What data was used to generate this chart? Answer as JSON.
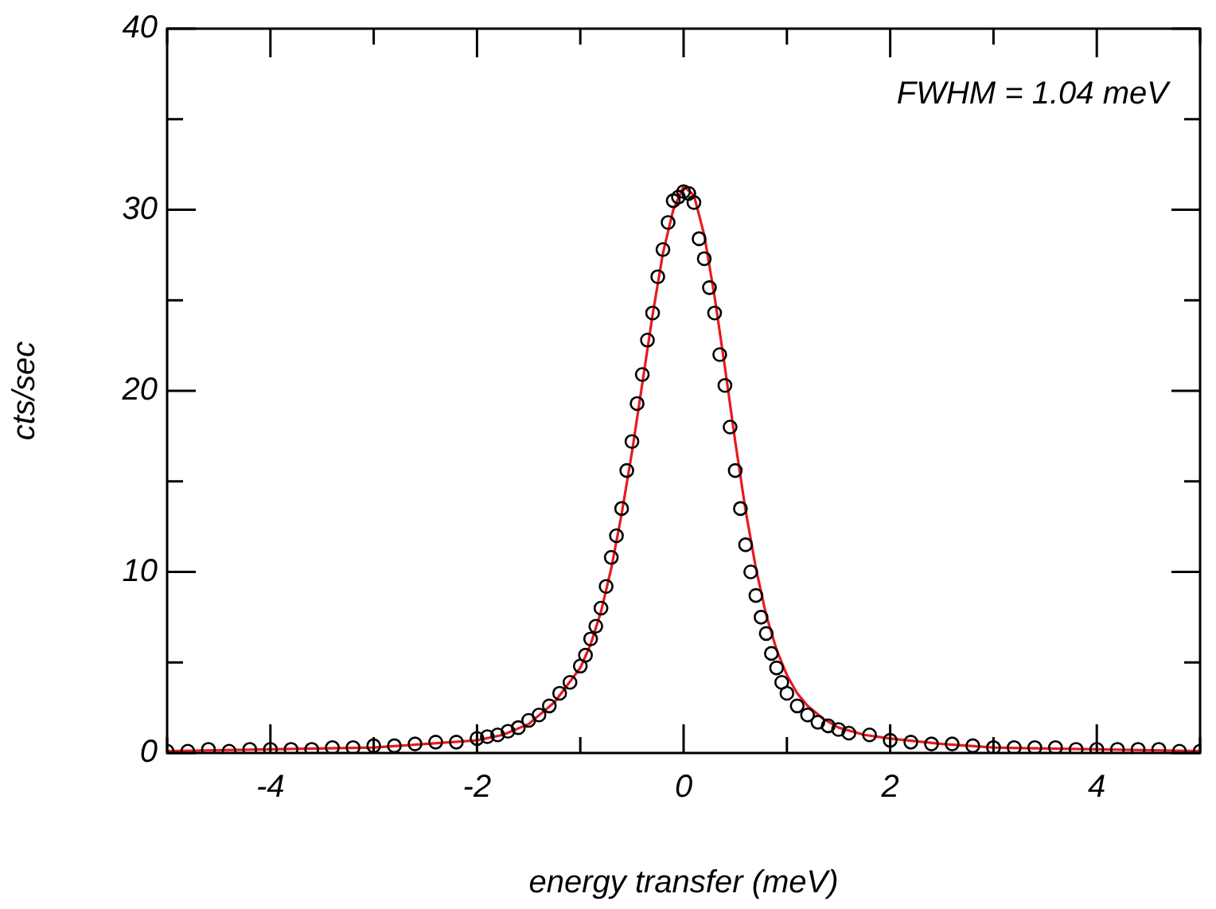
{
  "chart_data": {
    "type": "scatter",
    "xlabel": "energy transfer (meV)",
    "ylabel": "cts/sec",
    "annotations": [
      "FWHM = 1.04 meV"
    ],
    "xlim": [
      -5,
      5
    ],
    "ylim": [
      0,
      40
    ],
    "xticks": [
      {
        "value": -5,
        "label": null
      },
      -4,
      {
        "value": -3,
        "label": null
      },
      -2,
      {
        "value": -1,
        "label": null
      },
      0,
      {
        "value": 1,
        "label": null
      },
      2,
      {
        "value": 3,
        "label": null
      },
      4,
      {
        "value": 5,
        "label": null
      }
    ],
    "yticks": [
      0,
      {
        "value": 5,
        "label": null
      },
      10,
      {
        "value": 15,
        "label": null
      },
      20,
      {
        "value": 25,
        "label": null
      },
      30,
      {
        "value": 35,
        "label": null
      },
      40
    ],
    "grid": false,
    "legend": false,
    "series": [
      {
        "type": "scatter",
        "marker": "circle",
        "color": "#000000",
        "x": [
          -5,
          -4.8,
          -4.6,
          -4.4,
          -4.2,
          -4,
          -3.8,
          -3.6,
          -3.4,
          -3.2,
          -3,
          -2.8,
          -2.6,
          -2.4,
          -2.2,
          -2,
          -1.9,
          -1.8,
          -1.7,
          -1.6,
          -1.5,
          -1.4,
          -1.3,
          -1.2,
          -1.1,
          -1,
          -0.95,
          -0.9,
          -0.85,
          -0.8,
          -0.75,
          -0.7,
          -0.65,
          -0.6,
          -0.55,
          -0.5,
          -0.45,
          -0.4,
          -0.35,
          -0.3,
          -0.25,
          -0.2,
          -0.15,
          -0.1,
          -0.05,
          0,
          0.05,
          0.1,
          0.15,
          0.2,
          0.25,
          0.3,
          0.35,
          0.4,
          0.45,
          0.5,
          0.55,
          0.6,
          0.65,
          0.7,
          0.75,
          0.8,
          0.85,
          0.9,
          0.95,
          1,
          1.1,
          1.2,
          1.3,
          1.4,
          1.5,
          1.6,
          1.8,
          2,
          2.2,
          2.4,
          2.6,
          2.8,
          3,
          3.2,
          3.4,
          3.6,
          3.8,
          4,
          4.2,
          4.4,
          4.6,
          4.8,
          5
        ],
        "values": [
          0.1,
          0.1,
          0.2,
          0.1,
          0.2,
          0.2,
          0.2,
          0.2,
          0.3,
          0.3,
          0.4,
          0.4,
          0.5,
          0.6,
          0.6,
          0.8,
          0.9,
          1,
          1.2,
          1.4,
          1.8,
          2.1,
          2.6,
          3.3,
          3.9,
          4.8,
          5.4,
          6.3,
          7,
          8,
          9.2,
          10.8,
          12,
          13.5,
          15.6,
          17.2,
          19.3,
          20.9,
          22.8,
          24.3,
          26.3,
          27.8,
          29.3,
          30.5,
          30.7,
          31,
          30.9,
          30.4,
          28.4,
          27.3,
          25.7,
          24.3,
          22,
          20.3,
          18,
          15.6,
          13.5,
          11.5,
          10,
          8.7,
          7.5,
          6.6,
          5.5,
          4.7,
          3.9,
          3.3,
          2.6,
          2.1,
          1.7,
          1.5,
          1.3,
          1.1,
          1,
          0.7,
          0.6,
          0.5,
          0.5,
          0.4,
          0.3,
          0.3,
          0.3,
          0.3,
          0.2,
          0.2,
          0.2,
          0.2,
          0.2,
          0.1,
          0.1
        ]
      },
      {
        "type": "line",
        "marker": "none",
        "line_style": "solid",
        "color": "#e8191e",
        "x": [
          -5,
          -4,
          -3,
          -2.5,
          -2,
          -1.75,
          -1.5,
          -1.25,
          -1,
          -0.9,
          -0.8,
          -0.7,
          -0.6,
          -0.5,
          -0.4,
          -0.3,
          -0.2,
          -0.1,
          0,
          0.1,
          0.2,
          0.3,
          0.4,
          0.5,
          0.6,
          0.7,
          0.8,
          0.9,
          1,
          1.1,
          1.2,
          1.35,
          1.5,
          1.75,
          2,
          2.5,
          3,
          4,
          5
        ],
        "values": [
          0.1,
          0.2,
          0.3,
          0.5,
          0.7,
          1,
          1.6,
          2.8,
          4.7,
          6,
          7.8,
          10.2,
          13.2,
          16.6,
          20.4,
          24.2,
          27.6,
          30,
          31.3,
          30.8,
          28.6,
          25.2,
          21.3,
          17.2,
          13.4,
          10.2,
          7.6,
          5.7,
          4.3,
          3.3,
          2.6,
          1.9,
          1.4,
          1,
          0.8,
          0.5,
          0.3,
          0.2,
          0.1
        ]
      }
    ]
  }
}
